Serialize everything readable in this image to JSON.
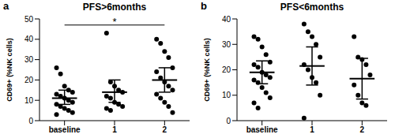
{
  "chart_data": [
    {
      "type": "scatter",
      "panel": "a",
      "title": "PFS>6months",
      "y_label": "CD69+ (%NK cells)",
      "categories": [
        "baseline",
        "1",
        "2"
      ],
      "points": [
        [
          26,
          23,
          17,
          15,
          14,
          13,
          12,
          11,
          10,
          9,
          8,
          7,
          6,
          5,
          4,
          3
        ],
        [
          43,
          19,
          17,
          15,
          14,
          12,
          11,
          9,
          8,
          7,
          6,
          5
        ],
        [
          40,
          38,
          34,
          31,
          26,
          24,
          21,
          19,
          17,
          15,
          13,
          11,
          9,
          7,
          4
        ]
      ],
      "mean": [
        11,
        14,
        20
      ],
      "ci_low": [
        8,
        9,
        14
      ],
      "ci_high": [
        15,
        20,
        26
      ],
      "color": "#000000",
      "marker": "circle",
      "ylim": [
        0,
        50
      ],
      "yticks": [
        0,
        10,
        20,
        30,
        40,
        50
      ],
      "annotations": [
        {
          "text": "*",
          "from": "baseline",
          "to": "2"
        }
      ]
    },
    {
      "type": "scatter",
      "panel": "b",
      "title": "PFS<6months",
      "y_label": "CD69+ (%NK cells)",
      "categories": [
        "baseline",
        "1",
        "2"
      ],
      "points": [
        [
          33,
          32,
          29,
          26,
          23,
          22,
          21,
          19,
          18,
          17,
          16,
          15,
          13,
          11,
          9,
          7,
          5
        ],
        [
          38,
          35,
          33,
          30,
          25,
          22,
          20,
          17,
          15,
          10,
          1
        ],
        [
          33,
          25,
          24,
          22,
          18,
          14,
          10,
          7,
          6
        ]
      ],
      "mean": [
        19,
        21.5,
        16.5
      ],
      "ci_low": [
        14.5,
        14,
        8.5
      ],
      "ci_high": [
        23.5,
        29,
        24.5
      ],
      "color": "#000000",
      "marker": "circle",
      "ylim": [
        0,
        40
      ],
      "yticks": [
        0,
        10,
        20,
        30,
        40
      ]
    }
  ]
}
